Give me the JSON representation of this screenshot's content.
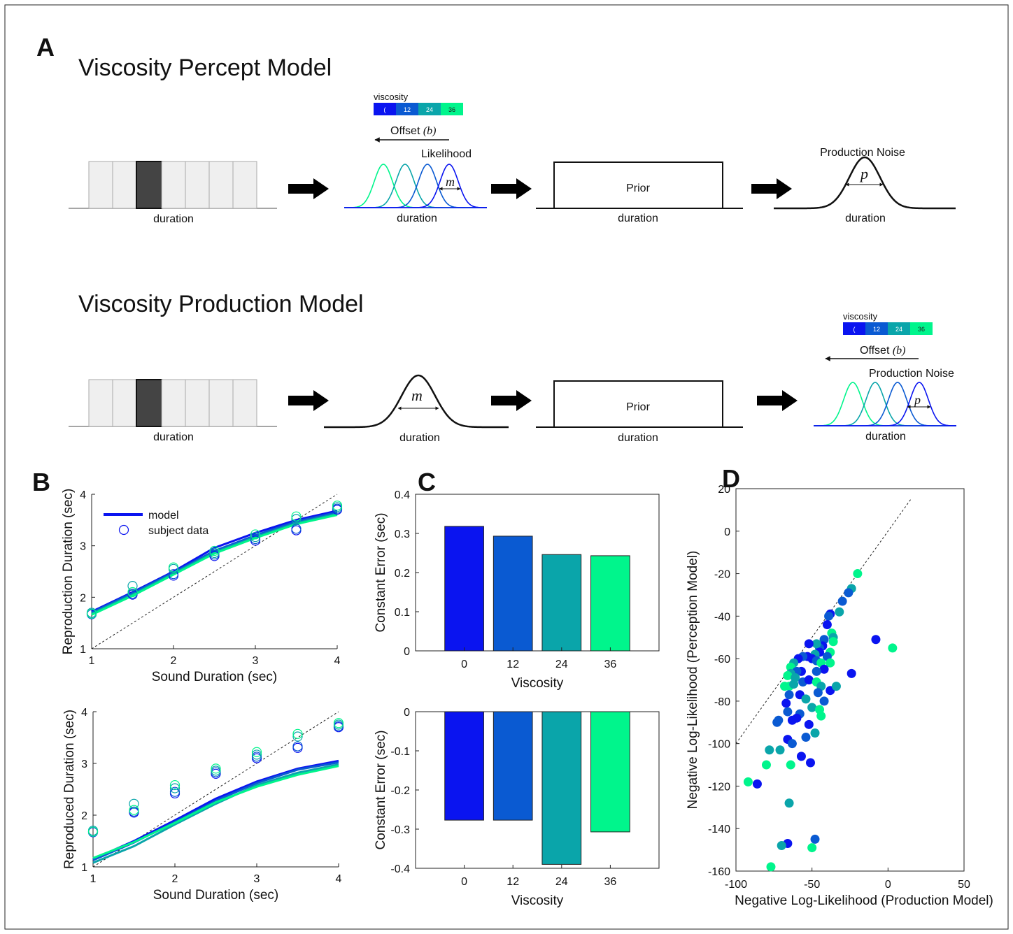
{
  "panels": {
    "A": "A",
    "B": "B",
    "C": "C",
    "D": "D"
  },
  "schematic": {
    "percept_title": "Viscosity Percept Model",
    "production_title": "Viscosity Production Model",
    "duration_label": "duration",
    "likelihood_label": "Likelihood",
    "prior_label": "Prior",
    "production_noise_label": "Production Noise",
    "offset_label": "Offset",
    "offset_symbol": "(b)",
    "m_symbol": "m",
    "p_symbol": "p",
    "colorbar_title": "viscosity",
    "colorbar_labels": [
      "(",
      "12",
      "24",
      "36"
    ],
    "colors": [
      "#0a14f0",
      "#0a5ad2",
      "#0aa5aa",
      "#00f58c"
    ]
  },
  "chart_data": [
    {
      "id": "B-top",
      "type": "line",
      "xlabel": "Sound Duration (sec)",
      "ylabel": "Reproduction Duration (sec)",
      "xlim": [
        1,
        4
      ],
      "ylim": [
        1,
        4
      ],
      "xticks": [
        1,
        2,
        3,
        4
      ],
      "yticks": [
        1,
        2,
        3,
        4
      ],
      "legend": {
        "position": "top-left",
        "entries": [
          "model",
          "subject data"
        ]
      },
      "x": [
        1,
        1.5,
        2,
        2.5,
        3,
        3.5,
        4
      ],
      "model_lines": [
        {
          "color": "#0a14f0",
          "values": [
            1.72,
            2.1,
            2.5,
            2.96,
            3.25,
            3.5,
            3.68
          ]
        },
        {
          "color": "#0a5ad2",
          "values": [
            1.7,
            2.08,
            2.48,
            2.9,
            3.2,
            3.47,
            3.65
          ]
        },
        {
          "color": "#0aa5aa",
          "values": [
            1.68,
            2.05,
            2.46,
            2.87,
            3.17,
            3.44,
            3.62
          ]
        },
        {
          "color": "#00f58c",
          "values": [
            1.66,
            2.03,
            2.44,
            2.85,
            3.15,
            3.42,
            3.6
          ]
        }
      ],
      "subject_points": [
        {
          "color": "#0a14f0",
          "values": [
            1.67,
            2.05,
            2.42,
            2.8,
            3.1,
            3.3,
            3.7
          ]
        },
        {
          "color": "#0a5ad2",
          "values": [
            1.68,
            2.07,
            2.45,
            2.83,
            3.13,
            3.33,
            3.72
          ]
        },
        {
          "color": "#0aa5aa",
          "values": [
            1.7,
            2.22,
            2.55,
            2.86,
            3.17,
            3.52,
            3.75
          ]
        },
        {
          "color": "#00f58c",
          "values": [
            1.68,
            2.1,
            2.58,
            2.9,
            3.22,
            3.57,
            3.78
          ]
        }
      ]
    },
    {
      "id": "B-bottom",
      "type": "line",
      "xlabel": "Sound Duration (sec)",
      "ylabel": "Reproduced Duration (sec)",
      "xlim": [
        1,
        4
      ],
      "ylim": [
        1,
        4
      ],
      "xticks": [
        1,
        2,
        3,
        4
      ],
      "yticks": [
        1,
        2,
        3,
        4
      ],
      "x": [
        1,
        1.5,
        2,
        2.5,
        3,
        3.5,
        4
      ],
      "model_lines": [
        {
          "color": "#0a14f0",
          "values": [
            1.15,
            1.5,
            1.9,
            2.32,
            2.65,
            2.9,
            3.05
          ]
        },
        {
          "color": "#0a5ad2",
          "values": [
            1.13,
            1.47,
            1.87,
            2.28,
            2.62,
            2.88,
            3.02
          ]
        },
        {
          "color": "#0aa5aa",
          "values": [
            1.08,
            1.4,
            1.82,
            2.22,
            2.58,
            2.82,
            2.98
          ]
        },
        {
          "color": "#00f58c",
          "values": [
            1.17,
            1.48,
            1.85,
            2.25,
            2.55,
            2.78,
            2.95
          ]
        }
      ],
      "subject_points": [
        {
          "color": "#0a14f0",
          "values": [
            1.67,
            2.05,
            2.42,
            2.8,
            3.1,
            3.3,
            3.7
          ]
        },
        {
          "color": "#0a5ad2",
          "values": [
            1.68,
            2.07,
            2.45,
            2.83,
            3.13,
            3.33,
            3.72
          ]
        },
        {
          "color": "#0aa5aa",
          "values": [
            1.7,
            2.22,
            2.52,
            2.86,
            3.17,
            3.52,
            3.75
          ]
        },
        {
          "color": "#00f58c",
          "values": [
            1.68,
            2.1,
            2.58,
            2.9,
            3.22,
            3.57,
            3.78
          ]
        }
      ]
    },
    {
      "id": "C-top",
      "type": "bar",
      "xlabel": "Viscosity",
      "ylabel": "Constant Error (sec)",
      "categories": [
        "0",
        "12",
        "24",
        "36"
      ],
      "values": [
        0.318,
        0.293,
        0.246,
        0.243
      ],
      "colors": [
        "#0a14f0",
        "#0a5ad2",
        "#0aa5aa",
        "#00f58c"
      ],
      "ylim": [
        0,
        0.4
      ],
      "yticks": [
        0,
        0.1,
        0.2,
        0.3,
        0.4
      ],
      "ytick_labels": [
        "0",
        "0.1",
        "0.2",
        "0.3",
        "0.4"
      ]
    },
    {
      "id": "C-bottom",
      "type": "bar",
      "xlabel": "Viscosity",
      "ylabel": "Constant Error (sec)",
      "categories": [
        "0",
        "12",
        "24",
        "36"
      ],
      "values": [
        -0.277,
        -0.277,
        -0.39,
        -0.307
      ],
      "colors": [
        "#0a14f0",
        "#0a5ad2",
        "#0aa5aa",
        "#00f58c"
      ],
      "ylim": [
        -0.4,
        0
      ],
      "yticks": [
        -0.4,
        -0.3,
        -0.2,
        -0.1,
        0
      ],
      "ytick_labels": [
        "-0.4",
        "-0.3",
        "-0.2",
        "-0.1",
        "0"
      ]
    },
    {
      "id": "D",
      "type": "scatter",
      "xlabel": "Negative Log-Likelihood (Production Model)",
      "ylabel": "Negative Log-Likelihood (Perception Model)",
      "xlim": [
        -100,
        50
      ],
      "ylim": [
        -160,
        20
      ],
      "xticks": [
        -100,
        -50,
        0,
        50
      ],
      "yticks": [
        -160,
        -140,
        -120,
        -100,
        -80,
        -60,
        -40,
        -20,
        0,
        20
      ],
      "points": [
        {
          "x": -20,
          "y": -20,
          "color": "#00f58c"
        },
        {
          "x": -24,
          "y": -27,
          "color": "#0aa5aa"
        },
        {
          "x": -26,
          "y": -29,
          "color": "#0a5ad2"
        },
        {
          "x": -30,
          "y": -33,
          "color": "#0a5ad2"
        },
        {
          "x": -32,
          "y": -38,
          "color": "#0aa5aa"
        },
        {
          "x": -38,
          "y": -39,
          "color": "#0a14f0"
        },
        {
          "x": -39,
          "y": -40,
          "color": "#0a5ad2"
        },
        {
          "x": -40,
          "y": -44,
          "color": "#0a14f0"
        },
        {
          "x": -37,
          "y": -48,
          "color": "#00f58c"
        },
        {
          "x": -36,
          "y": -50,
          "color": "#0aa5aa"
        },
        {
          "x": -42,
          "y": -51,
          "color": "#0a5ad2"
        },
        {
          "x": -43,
          "y": -54,
          "color": "#0a14f0"
        },
        {
          "x": -45,
          "y": -55,
          "color": "#0a5ad2"
        },
        {
          "x": -47,
          "y": -53,
          "color": "#0aa5aa"
        },
        {
          "x": -52,
          "y": -53,
          "color": "#0a14f0"
        },
        {
          "x": -36,
          "y": -52,
          "color": "#00f58c"
        },
        {
          "x": -38,
          "y": -57,
          "color": "#00f58c"
        },
        {
          "x": -40,
          "y": -59,
          "color": "#0a5ad2"
        },
        {
          "x": -45,
          "y": -57,
          "color": "#0a14f0"
        },
        {
          "x": -48,
          "y": -58,
          "color": "#0aa5aa"
        },
        {
          "x": -53,
          "y": -59,
          "color": "#0a14f0"
        },
        {
          "x": -56,
          "y": -59,
          "color": "#0a5ad2"
        },
        {
          "x": -59,
          "y": -60,
          "color": "#0a14f0"
        },
        {
          "x": -62,
          "y": -62,
          "color": "#0aa5aa"
        },
        {
          "x": -64,
          "y": -64,
          "color": "#00f58c"
        },
        {
          "x": -50,
          "y": -60,
          "color": "#0a14f0"
        },
        {
          "x": -47,
          "y": -61,
          "color": "#0a5ad2"
        },
        {
          "x": -44,
          "y": -62,
          "color": "#00f58c"
        },
        {
          "x": -38,
          "y": -62,
          "color": "#00f58c"
        },
        {
          "x": -42,
          "y": -65,
          "color": "#0a14f0"
        },
        {
          "x": -47,
          "y": -66,
          "color": "#0a5ad2"
        },
        {
          "x": -57,
          "y": -66,
          "color": "#0a14f0"
        },
        {
          "x": -60,
          "y": -66,
          "color": "#0a5ad2"
        },
        {
          "x": -64,
          "y": -67,
          "color": "#0aa5aa"
        },
        {
          "x": -66,
          "y": -68,
          "color": "#00f58c"
        },
        {
          "x": -61,
          "y": -69,
          "color": "#0aa5aa"
        },
        {
          "x": -56,
          "y": -71,
          "color": "#0a5ad2"
        },
        {
          "x": -52,
          "y": -70,
          "color": "#0a14f0"
        },
        {
          "x": -47,
          "y": -71,
          "color": "#00f58c"
        },
        {
          "x": -44,
          "y": -73,
          "color": "#0aa5aa"
        },
        {
          "x": -38,
          "y": -75,
          "color": "#0a14f0"
        },
        {
          "x": -34,
          "y": -73,
          "color": "#0aa5aa"
        },
        {
          "x": -24,
          "y": -67,
          "color": "#0a14f0"
        },
        {
          "x": -8,
          "y": -51,
          "color": "#0a14f0"
        },
        {
          "x": 3,
          "y": -55,
          "color": "#00f58c"
        },
        {
          "x": -68,
          "y": -73,
          "color": "#00f58c"
        },
        {
          "x": -65,
          "y": -73,
          "color": "#00f58c"
        },
        {
          "x": -62,
          "y": -72,
          "color": "#0aa5aa"
        },
        {
          "x": -65,
          "y": -77,
          "color": "#0a5ad2"
        },
        {
          "x": -58,
          "y": -77,
          "color": "#0a14f0"
        },
        {
          "x": -54,
          "y": -79,
          "color": "#0aa5aa"
        },
        {
          "x": -46,
          "y": -76,
          "color": "#0a5ad2"
        },
        {
          "x": -42,
          "y": -80,
          "color": "#0a5ad2"
        },
        {
          "x": -67,
          "y": -81,
          "color": "#0a14f0"
        },
        {
          "x": -50,
          "y": -83,
          "color": "#0aa5aa"
        },
        {
          "x": -45,
          "y": -84,
          "color": "#00f58c"
        },
        {
          "x": -44,
          "y": -87,
          "color": "#00f58c"
        },
        {
          "x": -66,
          "y": -85,
          "color": "#0a5ad2"
        },
        {
          "x": -58,
          "y": -86,
          "color": "#0a5ad2"
        },
        {
          "x": -60,
          "y": -88,
          "color": "#0a14f0"
        },
        {
          "x": -72,
          "y": -89,
          "color": "#0a5ad2"
        },
        {
          "x": -73,
          "y": -90,
          "color": "#0a5ad2"
        },
        {
          "x": -63,
          "y": -89,
          "color": "#0a14f0"
        },
        {
          "x": -52,
          "y": -91,
          "color": "#0a14f0"
        },
        {
          "x": -48,
          "y": -95,
          "color": "#0aa5aa"
        },
        {
          "x": -54,
          "y": -97,
          "color": "#0a5ad2"
        },
        {
          "x": -66,
          "y": -98,
          "color": "#0a14f0"
        },
        {
          "x": -63,
          "y": -100,
          "color": "#0a5ad2"
        },
        {
          "x": -78,
          "y": -103,
          "color": "#0aa5aa"
        },
        {
          "x": -71,
          "y": -103,
          "color": "#0aa5aa"
        },
        {
          "x": -57,
          "y": -106,
          "color": "#0a14f0"
        },
        {
          "x": -80,
          "y": -110,
          "color": "#00f58c"
        },
        {
          "x": -64,
          "y": -110,
          "color": "#00f58c"
        },
        {
          "x": -51,
          "y": -109,
          "color": "#0a14f0"
        },
        {
          "x": -92,
          "y": -118,
          "color": "#00f58c"
        },
        {
          "x": -86,
          "y": -119,
          "color": "#0a14f0"
        },
        {
          "x": -65,
          "y": -128,
          "color": "#0aa5aa"
        },
        {
          "x": -66,
          "y": -147,
          "color": "#0a14f0"
        },
        {
          "x": -70,
          "y": -148,
          "color": "#0aa5aa"
        },
        {
          "x": -48,
          "y": -145,
          "color": "#0a5ad2"
        },
        {
          "x": -50,
          "y": -149,
          "color": "#00f58c"
        },
        {
          "x": -77,
          "y": -158,
          "color": "#00f58c"
        }
      ]
    }
  ]
}
